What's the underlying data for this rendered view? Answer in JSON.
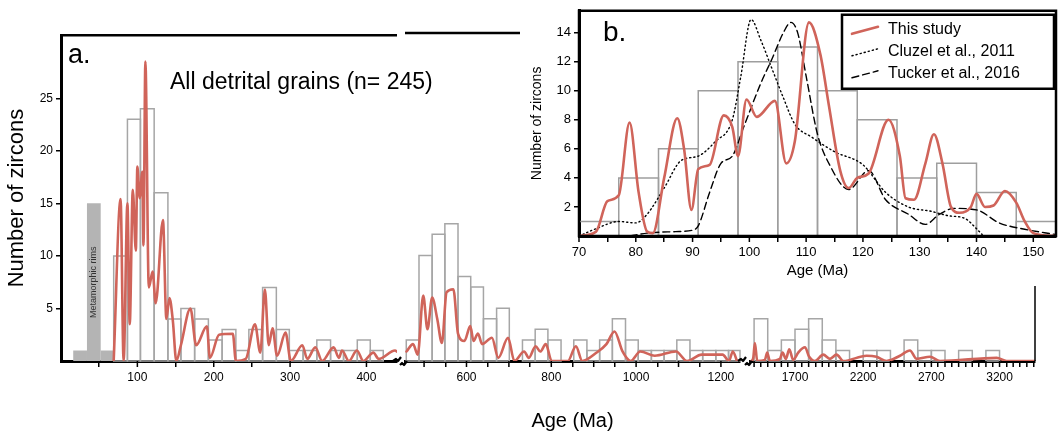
{
  "chart_data": [
    {
      "type": "histogram",
      "ylabel": "Number of zircons",
      "annotations": [
        "a.",
        "All detrital grains (n= 245)"
      ],
      "bins": [
        16,
        34,
        52,
        69,
        87,
        104,
        122,
        140,
        157,
        175,
        193,
        211,
        229,
        246,
        264,
        282,
        299,
        317,
        335,
        353,
        370,
        388,
        405,
        422
      ],
      "series": [
        {
          "name": "Metamorphic rims",
          "color": "#b4b4b4",
          "values": [
            1,
            15,
            1,
            0,
            0,
            0,
            0,
            0,
            0,
            0,
            0,
            0,
            0,
            0,
            0,
            0,
            0,
            0,
            0,
            0,
            0,
            0,
            0
          ]
        },
        {
          "color": "#a6a6a6",
          "values": [
            0,
            0,
            0,
            10,
            23,
            24,
            16,
            4,
            5,
            4,
            2,
            3,
            1,
            3,
            7,
            3,
            1,
            1,
            2,
            1,
            1,
            2,
            1
          ]
        },
        {
          "type": "line",
          "color": "#d0645a",
          "x": [
            69,
            78,
            82,
            87,
            90,
            94,
            98,
            100,
            103,
            106.5,
            108,
            110.5,
            115,
            120,
            124,
            133.5,
            138,
            142,
            146.5,
            151,
            157,
            169.5,
            177,
            191,
            195,
            207,
            225,
            229,
            242,
            254,
            261,
            267,
            272,
            277,
            283,
            294,
            301,
            316,
            322.5,
            333,
            342,
            357,
            364,
            368,
            377,
            387.5,
            396,
            409,
            416,
            437.5,
            440
          ],
          "values": [
            0,
            15.4,
            0,
            15,
            3.5,
            16.3,
            10.5,
            18.5,
            15.5,
            18,
            11,
            28.5,
            7,
            8.5,
            5.5,
            13.4,
            4,
            6,
            3.8,
            0,
            1.5,
            5,
            1.5,
            3.3,
            0.3,
            2.5,
            2.6,
            0,
            0.2,
            3.5,
            0.8,
            6.8,
            1.5,
            3.1,
            0.5,
            2.7,
            0,
            1.5,
            0.2,
            1.3,
            0,
            1.3,
            0.3,
            1,
            0,
            1,
            0,
            0.8,
            0.2,
            1,
            0.9
          ]
        }
      ],
      "xlim": [
        0,
        440
      ],
      "xticks": [
        100,
        200,
        300,
        400
      ],
      "ylim": [
        0,
        31
      ],
      "yticks": [
        5,
        10,
        15,
        20,
        25
      ]
    },
    {
      "type": "histogram",
      "xlabel": "Age (Ma)",
      "tick_labels": "x",
      "bins": [
        458,
        488,
        519,
        549,
        580,
        610,
        640,
        671,
        701,
        732,
        762,
        792,
        823,
        853,
        884,
        914,
        944,
        975,
        1005,
        1036,
        1066,
        1096,
        1127,
        1157,
        1188,
        1218,
        1245
      ],
      "series": [
        {
          "color": "#a6a6a6",
          "values": [
            2,
            10,
            12,
            13,
            8,
            7,
            4,
            5,
            0,
            2,
            3,
            2,
            0,
            2,
            1,
            2,
            4,
            2,
            1,
            1,
            1,
            2,
            1,
            1,
            1,
            1
          ]
        },
        {
          "type": "line",
          "color": "#d0645a",
          "x": [
            458.5,
            474,
            485,
            498,
            508,
            519,
            531,
            542,
            553,
            569,
            580,
            595,
            609,
            616.5,
            627,
            637,
            660,
            675,
            698,
            713,
            736,
            747,
            763,
            774,
            787,
            801,
            839,
            858,
            873,
            907,
            930,
            949,
            968,
            987,
            1010,
            1044,
            1094,
            1120,
            1154.5,
            1204,
            1219,
            1228,
            1238
          ],
          "values": [
            0.9,
            1.6,
            0.6,
            6.2,
            3,
            6,
            4,
            1.7,
            6.5,
            6.8,
            2.6,
            1.9,
            3.3,
            1.9,
            2.6,
            1.6,
            2.2,
            0.3,
            2.2,
            0,
            0.9,
            0.3,
            1.4,
            0.9,
            1.6,
            0,
            0,
            1.4,
            0,
            0.8,
            1.6,
            2.8,
            0.9,
            0,
            0.9,
            0.5,
            0.9,
            0,
            0.6,
            0.6,
            0,
            0.9,
            0
          ]
        }
      ],
      "xlim": [
        455,
        1245
      ],
      "xticks": [
        {
          "value": 500,
          "label": null
        },
        600,
        {
          "value": 700,
          "label": null
        },
        800,
        {
          "value": 900,
          "label": null
        },
        1000,
        {
          "value": 1100,
          "label": null
        },
        1200
      ],
      "ylim": [
        0,
        25
      ],
      "yticks": [
        5,
        10,
        15,
        20,
        25
      ]
    },
    {
      "type": "histogram",
      "tick_labels": "x",
      "bins": [
        1400,
        1500,
        1600,
        1700,
        1800,
        1900,
        2000,
        2100,
        2200,
        2300,
        2400,
        2500,
        2600,
        2700,
        2800,
        2900,
        3000,
        3100,
        3200,
        3300
      ],
      "series": [
        {
          "color": "#a6a6a6",
          "values": [
            4,
            1,
            2,
            3,
            4,
            2,
            1,
            0,
            1,
            1,
            0,
            2,
            1,
            1,
            0,
            1,
            0,
            1,
            0
          ]
        },
        {
          "type": "line",
          "color": "#d0645a",
          "x": [
            1382,
            1394,
            1406,
            1423,
            1479,
            1496,
            1516,
            1589,
            1609,
            1633,
            1658,
            1687,
            1724,
            1773,
            1804,
            1846,
            1907,
            1956,
            2005,
            2054,
            2225,
            2298,
            2372,
            2470,
            2543,
            2592,
            2690,
            2763,
            3179,
            3252,
            3460
          ],
          "values": [
            0,
            0.3,
            1.7,
            0,
            0.1,
            0.8,
            0,
            0.2,
            0.8,
            0.2,
            1.1,
            0.1,
            0.8,
            1.3,
            0.4,
            0,
            0.6,
            0.2,
            0.6,
            0,
            0.5,
            0.4,
            0,
            0.5,
            1,
            0.2,
            0.4,
            0,
            0.3,
            0,
            0
          ]
        }
      ],
      "xlim": [
        1370,
        3460
      ],
      "xticks": [
        {
          "value": 1400,
          "label": null
        },
        {
          "value": 1500,
          "label": null
        },
        {
          "value": 1600,
          "label": null
        },
        1700,
        {
          "value": 1800,
          "label": null
        },
        {
          "value": 1900,
          "label": null
        },
        {
          "value": 2000,
          "label": null
        },
        {
          "value": 2100,
          "label": null
        },
        2200,
        {
          "value": 2300,
          "label": null
        },
        {
          "value": 2400,
          "label": null
        },
        {
          "value": 2500,
          "label": null
        },
        {
          "value": 2600,
          "label": null
        },
        2700,
        {
          "value": 2800,
          "label": null
        },
        {
          "value": 2900,
          "label": null
        },
        {
          "value": 3000,
          "label": null
        },
        {
          "value": 3100,
          "label": null
        },
        3200,
        {
          "value": 3300,
          "label": null
        },
        {
          "value": 3400,
          "label": null
        }
      ],
      "ylim": [
        0,
        25
      ],
      "yticks": [
        5,
        10,
        15,
        20,
        25
      ]
    },
    {
      "type": "histogram",
      "xlabel": "Age (Ma)",
      "ylabel": "Number of zircons",
      "annotations": [
        "b."
      ],
      "legend": "top right",
      "bins": [
        70,
        77,
        84,
        91,
        98,
        105,
        112,
        119,
        126,
        133,
        140,
        147,
        154
      ],
      "series": [
        {
          "color": "#9e9e9e",
          "values": [
            1,
            4,
            6,
            10,
            12,
            13,
            10,
            8,
            4,
            5,
            3,
            1
          ]
        },
        {
          "type": "line",
          "name": "This study",
          "color": "#d0645a",
          "line_style": "solid",
          "x": [
            70,
            73,
            75,
            77,
            78.9,
            80.5,
            82,
            83,
            85,
            87.3,
            88.5,
            89.8,
            91,
            93,
            95.5,
            97,
            98,
            99.5,
            101.3,
            104.5,
            106.5,
            108,
            110.5,
            112.5,
            114,
            116,
            117.5,
            119,
            121,
            124.5,
            126.5,
            127.5,
            129,
            131,
            132.5,
            134,
            135.5,
            137,
            139,
            140,
            141.5,
            143,
            145,
            147,
            148.5,
            150,
            154
          ],
          "values": [
            0,
            0.3,
            2.4,
            2.8,
            7.8,
            3,
            0.3,
            0.2,
            4,
            8.1,
            6,
            1.8,
            4.6,
            4.9,
            8.3,
            7.5,
            5.5,
            9.4,
            8.2,
            9.3,
            5,
            6.5,
            14.7,
            12.5,
            9,
            4.5,
            3.3,
            4,
            4.3,
            8,
            5.5,
            2.6,
            2.5,
            5,
            7,
            5,
            2,
            1.6,
            2,
            2.9,
            2,
            2.1,
            3.1,
            2.3,
            1,
            0.2,
            0
          ]
        },
        {
          "type": "line",
          "name": "Cluzel et al., 2011",
          "color": "#000000",
          "line_style": "dotted",
          "x": [
            70,
            73,
            77,
            80,
            82,
            85,
            88,
            91,
            94,
            97,
            98.5,
            100.3,
            102,
            104,
            106,
            108,
            111,
            115,
            120,
            124,
            128,
            132,
            135,
            138,
            140,
            141
          ],
          "values": [
            0,
            0.5,
            1,
            0.9,
            1.5,
            3.3,
            5.2,
            5.5,
            6.5,
            8,
            11,
            14.9,
            13.5,
            11.5,
            9.5,
            7.7,
            6.8,
            5.8,
            4.9,
            3,
            2,
            1.7,
            1.4,
            1.2,
            0.5,
            0.1
          ]
        },
        {
          "type": "line",
          "name": "Tucker et al., 2016",
          "color": "#000000",
          "line_style": "dashed",
          "x": [
            79,
            82,
            87,
            90,
            91,
            93,
            95,
            97,
            99,
            102,
            104,
            106,
            107.3,
            108.5,
            110,
            112,
            114,
            117.5,
            121,
            124,
            128,
            131,
            133.5,
            136,
            140,
            144,
            148,
            154
          ],
          "values": [
            0,
            0.2,
            0.3,
            0.4,
            0.7,
            3,
            5,
            5.5,
            7.5,
            10.5,
            12.2,
            14,
            14.7,
            14,
            11,
            7,
            5,
            3.2,
            4.5,
            2.5,
            1.5,
            0.8,
            1.5,
            1.9,
            1.8,
            0.9,
            0.5,
            0.1
          ]
        }
      ],
      "xlim": [
        70,
        154
      ],
      "xticks": [
        70,
        80,
        90,
        100,
        110,
        120,
        130,
        140,
        150
      ],
      "ylim": [
        0,
        15.5
      ],
      "yticks": [
        2,
        4,
        6,
        8,
        10,
        12,
        14
      ]
    }
  ]
}
